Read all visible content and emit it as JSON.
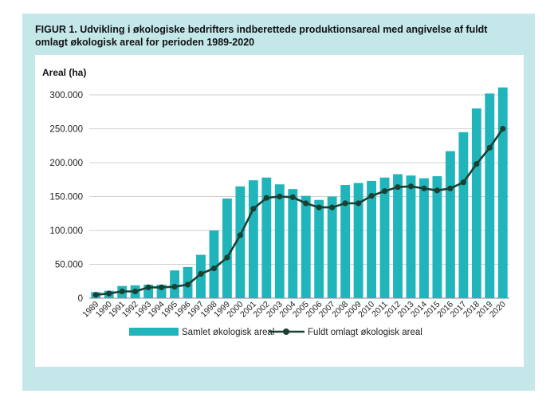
{
  "figure_title": "FIGUR 1. Udvikling i økologiske bedrifters indberettede produktionsareal med angivelse af fuldt omlagt økologisk areal for perioden 1989-2020",
  "colors": {
    "panel_bg": "#c4e7ea",
    "bar": "#1fb5bb",
    "line": "#1a4033",
    "grid": "#d0d0d0"
  },
  "chart_data": {
    "type": "bar",
    "ylabel": "Areal (ha)",
    "xlabel": "",
    "ylim": [
      0,
      300000
    ],
    "yticks": [
      0,
      50000,
      100000,
      150000,
      200000,
      250000,
      300000
    ],
    "ytick_labels": [
      "0",
      "50.000",
      "100.000",
      "150.000",
      "200.000",
      "250.000",
      "300.000"
    ],
    "grid": true,
    "legend_position": "bottom",
    "categories": [
      "1989",
      "1990",
      "1991",
      "1992",
      "1993",
      "1994",
      "1995",
      "1996",
      "1997",
      "1998",
      "1999",
      "2000",
      "2001",
      "2002",
      "2003",
      "2004",
      "2005",
      "2006",
      "2007",
      "2008",
      "2009",
      "2010",
      "2011",
      "2012",
      "2013",
      "2014",
      "2015",
      "2016",
      "2017",
      "2018",
      "2019",
      "2020"
    ],
    "series": [
      {
        "name": "Samlet økologisk areal",
        "type": "bar",
        "values": [
          9000,
          11000,
          18000,
          19000,
          20000,
          20000,
          41000,
          46000,
          64000,
          100000,
          147000,
          165000,
          174000,
          178000,
          168000,
          161000,
          151000,
          145000,
          150000,
          167000,
          170000,
          173000,
          178000,
          183000,
          181000,
          177000,
          180000,
          217000,
          245000,
          280000,
          302000,
          311000
        ]
      },
      {
        "name": "Fuldt omlagt økologisk areal",
        "type": "line",
        "values": [
          5000,
          7000,
          10000,
          10000,
          16000,
          16000,
          17000,
          20000,
          36000,
          44000,
          60000,
          93000,
          132000,
          148000,
          150000,
          149000,
          140000,
          134000,
          134000,
          140000,
          140000,
          151000,
          158000,
          164000,
          165000,
          162000,
          159000,
          162000,
          171000,
          198000,
          222000,
          250000
        ]
      }
    ]
  }
}
